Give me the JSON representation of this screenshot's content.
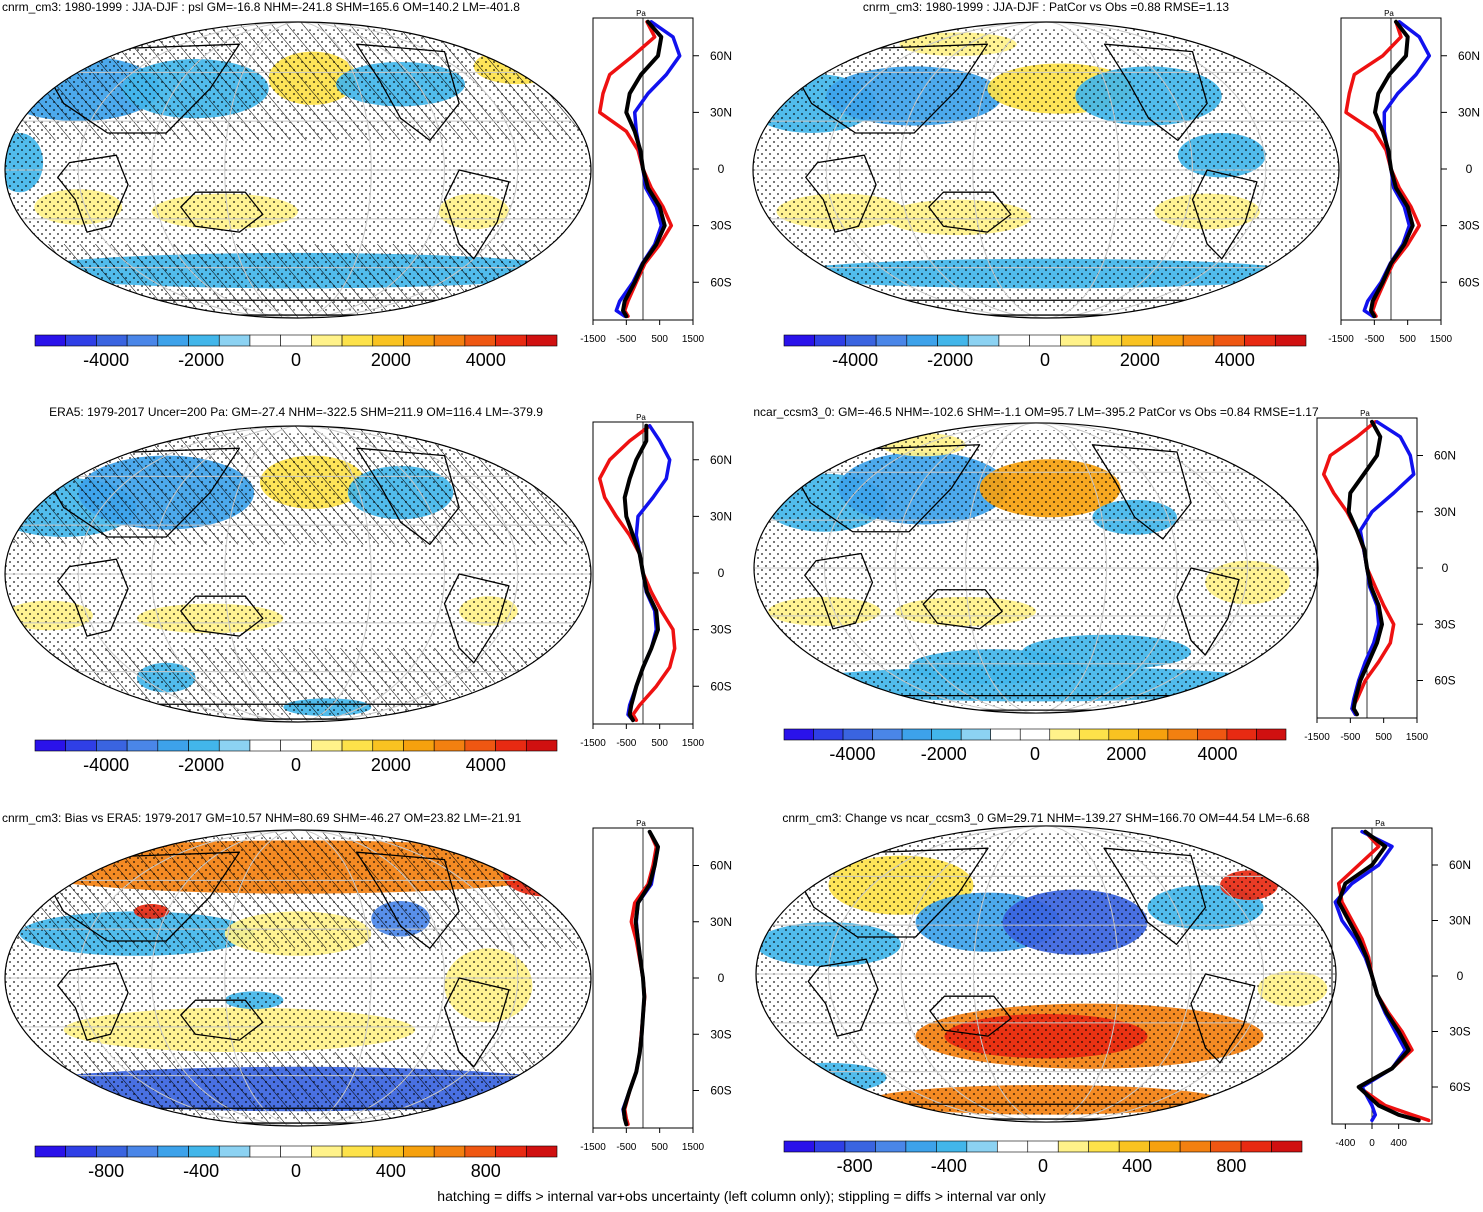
{
  "footer": "hatching = diffs > internal var+obs uncertainty (left column only); stippling = diffs > internal var only",
  "colors": {
    "red": "#ee1111",
    "blue": "#1111ee",
    "black": "#000000",
    "ramp": [
      "#2a12ea",
      "#2f3fe6",
      "#3a64e0",
      "#4a86e8",
      "#3da2ea",
      "#42b6ea",
      "#8cd2f2",
      "#ffffff",
      "#ffffff",
      "#fff28a",
      "#fde24a",
      "#f9c321",
      "#f6a10e",
      "#f38010",
      "#ef5712",
      "#e82a12",
      "#d01010"
    ]
  },
  "panels": [
    {
      "id": "a",
      "title": "cnrm_cm3: 1980-1999 : JJA-DJF : psl GM=-16.8 NHM=-241.8 SHM=165.6 OM=140.2 LM=-401.8",
      "title_align": "left",
      "cbar_labels": [
        "-4000",
        "-2000",
        "0",
        "2000",
        "4000"
      ],
      "unit": "Pa",
      "lat_labels": [
        "60N",
        "30N",
        "0",
        "30S",
        "60S"
      ],
      "x_labels": [
        "-1500",
        "-500",
        "500",
        "1500"
      ],
      "hatch": true,
      "chart_data": {
        "type": "map",
        "title": "cnrm_cm3: 1980-1999 : JJA-DJF : psl GM=-16.8 NHM=-241.8 SHM=165.6 OM=140.2 LM=-401.8",
        "colorbar": {
          "min": -5500,
          "max": 5500,
          "ticks": [
            -4000,
            -2000,
            0,
            2000,
            4000
          ]
        },
        "zonal_mean": {
          "xlim": [
            -1500,
            1500
          ],
          "lat": [
            78,
            70,
            60,
            50,
            40,
            30,
            20,
            10,
            0,
            -10,
            -20,
            -30,
            -40,
            -50,
            -60,
            -70,
            -75,
            -78
          ],
          "series": [
            {
              "name": "red",
              "values": [
                120,
                350,
                -300,
                -1000,
                -1200,
                -1300,
                -500,
                -150,
                0,
                250,
                600,
                850,
                500,
                60,
                -200,
                -450,
                -550,
                -450
              ]
            },
            {
              "name": "blue",
              "values": [
                250,
                900,
                1100,
                700,
                150,
                -250,
                -200,
                -100,
                0,
                80,
                400,
                550,
                350,
                -20,
                -300,
                -700,
                -800,
                -550
              ]
            },
            {
              "name": "black",
              "values": [
                150,
                550,
                450,
                -60,
                -400,
                -500,
                -250,
                -80,
                0,
                150,
                500,
                650,
                400,
                0,
                -250,
                -550,
                -600,
                -500
              ]
            }
          ]
        }
      }
    },
    {
      "id": "b",
      "title": "cnrm_cm3: 1980-1999 : JJA-DJF : PatCor vs Obs =0.88 RMSE=1.13",
      "title_align": "center",
      "cbar_labels": [
        "-4000",
        "-2000",
        "0",
        "2000",
        "4000"
      ],
      "unit": "Pa",
      "lat_labels": [
        "60N",
        "30N",
        "0",
        "30S",
        "60S"
      ],
      "x_labels": [
        "-1500",
        "-500",
        "500",
        "1500"
      ],
      "hatch": false,
      "chart_data": {
        "type": "map",
        "title": "cnrm_cm3: 1980-1999 : JJA-DJF : PatCor vs Obs =0.88 RMSE=1.13",
        "colorbar": {
          "min": -5500,
          "max": 5500,
          "ticks": [
            -4000,
            -2000,
            0,
            2000,
            4000
          ]
        },
        "zonal_mean": {
          "xlim": [
            -1500,
            1500
          ],
          "lat": [
            78,
            70,
            60,
            50,
            40,
            30,
            20,
            10,
            0,
            -10,
            -20,
            -30,
            -40,
            -50,
            -60,
            -70,
            -75,
            -78
          ],
          "series": [
            {
              "name": "red",
              "values": [
                150,
                300,
                -250,
                -1100,
                -1250,
                -1350,
                -500,
                -150,
                0,
                250,
                600,
                850,
                500,
                60,
                -200,
                -450,
                -550,
                -450
              ]
            },
            {
              "name": "blue",
              "values": [
                250,
                850,
                1150,
                750,
                200,
                -200,
                -200,
                -100,
                0,
                80,
                400,
                550,
                350,
                -20,
                -300,
                -700,
                -800,
                -550
              ]
            },
            {
              "name": "black",
              "values": [
                150,
                500,
                450,
                -50,
                -380,
                -480,
                -250,
                -80,
                0,
                150,
                500,
                650,
                400,
                0,
                -250,
                -550,
                -600,
                -500
              ]
            }
          ]
        }
      }
    },
    {
      "id": "c",
      "title": "ERA5: 1979-2017 Uncer=200 Pa: GM=-27.4 NHM=-322.5 SHM=211.9 OM=116.4 LM=-379.9",
      "title_align": "center",
      "cbar_labels": [
        "-4000",
        "-2000",
        "0",
        "2000",
        "4000"
      ],
      "unit": "Pa",
      "lat_labels": [
        "60N",
        "30N",
        "0",
        "30S",
        "60S"
      ],
      "x_labels": [
        "-1500",
        "-500",
        "500",
        "1500"
      ],
      "hatch": true,
      "chart_data": {
        "type": "map",
        "title": "ERA5: 1979-2017 Uncer=200 Pa: GM=-27.4 NHM=-322.5 SHM=211.9 OM=116.4 LM=-379.9",
        "colorbar": {
          "min": -5500,
          "max": 5500,
          "ticks": [
            -4000,
            -2000,
            0,
            2000,
            4000
          ]
        },
        "zonal_mean": {
          "xlim": [
            -1500,
            1500
          ],
          "lat": [
            78,
            70,
            60,
            50,
            40,
            30,
            20,
            10,
            0,
            -10,
            -20,
            -30,
            -40,
            -50,
            -60,
            -70,
            -75,
            -78
          ],
          "series": [
            {
              "name": "red",
              "values": [
                200,
                -400,
                -1000,
                -1300,
                -1150,
                -800,
                -400,
                -100,
                0,
                250,
                550,
                900,
                950,
                800,
                400,
                -100,
                -300,
                -200
              ]
            },
            {
              "name": "blue",
              "values": [
                200,
                500,
                800,
                700,
                300,
                -150,
                -200,
                -100,
                0,
                100,
                350,
                400,
                250,
                0,
                -200,
                -400,
                -450,
                -300
              ]
            },
            {
              "name": "black",
              "values": [
                100,
                100,
                -200,
                -400,
                -550,
                -500,
                -300,
                -100,
                0,
                120,
                400,
                450,
                250,
                0,
                -200,
                -350,
                -400,
                -300
              ]
            }
          ]
        }
      }
    },
    {
      "id": "d",
      "title": "ncar_ccsm3_0: GM=-46.5 NHM=-102.6 SHM=-1.1 OM=95.7 LM=-395.2 PatCor vs Obs =0.84 RMSE=1.17",
      "title_align": "center",
      "cbar_labels": [
        "-4000",
        "-2000",
        "0",
        "2000",
        "4000"
      ],
      "unit": "Pa",
      "lat_labels": [
        "60N",
        "30N",
        "0",
        "30S",
        "60S"
      ],
      "x_labels": [
        "-1500",
        "-500",
        "500",
        "1500"
      ],
      "hatch": false,
      "chart_data": {
        "type": "map",
        "title": "ncar_ccsm3_0: GM=-46.5 NHM=-102.6 SHM=-1.1 OM=95.7 LM=-395.2 PatCor vs Obs =0.84 RMSE=1.17",
        "colorbar": {
          "min": -5500,
          "max": 5500,
          "ticks": [
            -4000,
            -2000,
            0,
            2000,
            4000
          ]
        },
        "zonal_mean": {
          "xlim": [
            -1500,
            1500
          ],
          "lat": [
            78,
            70,
            60,
            50,
            40,
            30,
            20,
            10,
            0,
            -10,
            -20,
            -30,
            -40,
            -50,
            -60,
            -70,
            -75,
            -78
          ],
          "series": [
            {
              "name": "red",
              "values": [
                250,
                -300,
                -1100,
                -1300,
                -1000,
                -600,
                -300,
                -100,
                0,
                250,
                500,
                800,
                700,
                350,
                -50,
                -300,
                -450,
                -350
              ]
            },
            {
              "name": "blue",
              "values": [
                300,
                1000,
                1300,
                1400,
                800,
                150,
                -200,
                -100,
                0,
                80,
                300,
                350,
                200,
                -50,
                -250,
                -400,
                -450,
                -350
              ]
            },
            {
              "name": "black",
              "values": [
                150,
                400,
                300,
                -100,
                -500,
                -550,
                -300,
                -80,
                0,
                120,
                350,
                450,
                300,
                50,
                -200,
                -350,
                -400,
                -300
              ]
            }
          ]
        }
      }
    },
    {
      "id": "e",
      "title": "cnrm_cm3: Bias vs ERA5: 1979-2017 GM=10.57 NHM=80.69 SHM=-46.27 OM=23.82 LM=-21.91",
      "title_align": "left",
      "cbar_labels": [
        "-800",
        "-400",
        "0",
        "400",
        "800"
      ],
      "unit": "Pa",
      "lat_labels": [
        "60N",
        "30N",
        "0",
        "30S",
        "60S"
      ],
      "x_labels": [
        "-1500",
        "-500",
        "500",
        "1500"
      ],
      "hatch": true,
      "chart_data": {
        "type": "map",
        "title": "cnrm_cm3: Bias vs ERA5: 1979-2017 GM=10.57 NHM=80.69 SHM=-46.27 OM=23.82 LM=-21.91",
        "colorbar": {
          "min": -1100,
          "max": 1100,
          "ticks": [
            -800,
            -400,
            0,
            400,
            800
          ]
        },
        "zonal_mean": {
          "xlim": [
            -1500,
            1500
          ],
          "lat": [
            78,
            70,
            60,
            50,
            40,
            30,
            20,
            10,
            0,
            -10,
            -20,
            -30,
            -40,
            -50,
            -60,
            -70,
            -75,
            -78
          ],
          "series": [
            {
              "name": "red",
              "values": [
                200,
                400,
                300,
                150,
                -250,
                -350,
                -200,
                -100,
                0,
                50,
                0,
                -50,
                -100,
                -200,
                -400,
                -550,
                -500,
                -450
              ]
            },
            {
              "name": "blue",
              "values": [
                200,
                450,
                350,
                250,
                -150,
                -200,
                -150,
                -80,
                0,
                40,
                0,
                -40,
                -100,
                -200,
                -400,
                -600,
                -550,
                -500
              ]
            },
            {
              "name": "black",
              "values": [
                200,
                450,
                350,
                200,
                -150,
                -220,
                -150,
                -80,
                0,
                40,
                0,
                -40,
                -100,
                -200,
                -400,
                -580,
                -550,
                -500
              ]
            }
          ]
        }
      }
    },
    {
      "id": "f",
      "title": "cnrm_cm3: Change vs ncar_ccsm3_0 GM=29.71 NHM=-139.27 SHM=166.70 OM=44.54 LM=-6.68",
      "title_align": "center",
      "cbar_labels": [
        "-800",
        "-400",
        "0",
        "400",
        "800"
      ],
      "unit": "Pa",
      "lat_labels": [
        "60N",
        "30N",
        "0",
        "30S",
        "60S"
      ],
      "x_labels": [
        "-400",
        "0",
        "400"
      ],
      "hatch": false,
      "chart_data": {
        "type": "map",
        "title": "cnrm_cm3: Change vs ncar_ccsm3_0 GM=29.71 NHM=-139.27 SHM=166.70 OM=44.54 LM=-6.68",
        "colorbar": {
          "min": -1100,
          "max": 1100,
          "ticks": [
            -800,
            -400,
            0,
            400,
            800
          ]
        },
        "zonal_mean": {
          "xlim": [
            -600,
            900
          ],
          "lat": [
            78,
            70,
            60,
            50,
            40,
            30,
            20,
            10,
            0,
            -10,
            -20,
            -30,
            -40,
            -50,
            -60,
            -70,
            -75,
            -78
          ],
          "series": [
            {
              "name": "red",
              "values": [
                -100,
                100,
                -200,
                -500,
                -450,
                -300,
                -150,
                -50,
                0,
                80,
                250,
                450,
                600,
                300,
                -200,
                200,
                600,
                850
              ]
            },
            {
              "name": "blue",
              "values": [
                -150,
                300,
                100,
                -300,
                -550,
                -450,
                -250,
                -100,
                0,
                80,
                200,
                350,
                500,
                300,
                -150,
                0,
                50,
                0
              ]
            },
            {
              "name": "black",
              "values": [
                -100,
                200,
                0,
                -400,
                -500,
                -350,
                -200,
                -80,
                0,
                80,
                220,
                400,
                550,
                300,
                -200,
                100,
                400,
                700
              ]
            }
          ]
        }
      }
    }
  ]
}
